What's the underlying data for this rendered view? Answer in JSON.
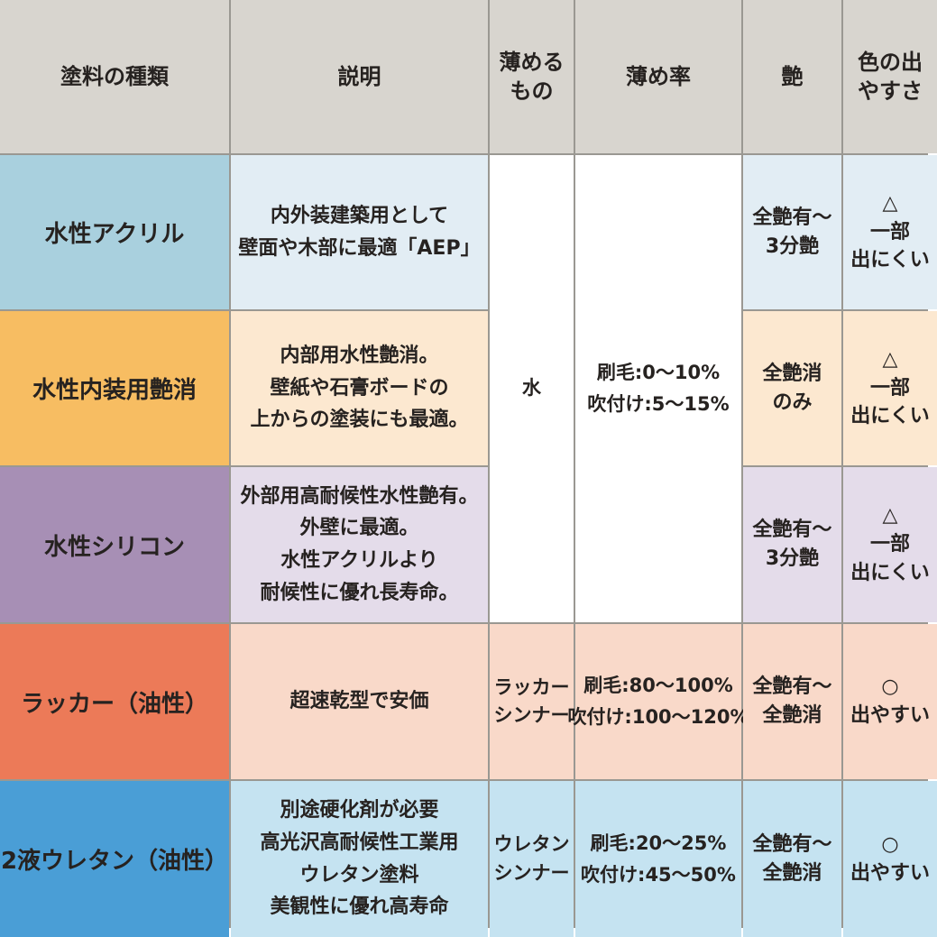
{
  "headers": {
    "bg": "#d8d5cf",
    "type": "塗料の種類",
    "description": "説明",
    "thinner": "薄める\nもの",
    "ratio": "薄め率",
    "gloss": "艶",
    "color_ease": "色の出\nやすさ"
  },
  "grid_line_color": "#9a9892",
  "text_color": "#262220",
  "merged_water": {
    "bg": "#ffffff",
    "thinner": "水",
    "ratio": "刷毛:0～10%\n吹付け:5～15%"
  },
  "rows": [
    {
      "type": "水性アクリル",
      "description": "内外装建築用として\n壁面や木部に最適「AEP」",
      "gloss": "全艶有～\n3分艶",
      "color_ease": "△\n一部\n出にくい",
      "accent": "#a9d0de",
      "tint": "#e2edf4"
    },
    {
      "type": "水性内装用艶消",
      "description": "内部用水性艶消。\n壁紙や石膏ボードの\n上からの塗装にも最適。",
      "gloss": "全艶消\nのみ",
      "color_ease": "△\n一部\n出にくい",
      "accent": "#f7bd62",
      "tint": "#fce8d0"
    },
    {
      "type": "水性シリコン",
      "description": "外部用高耐候性水性艶有。\n外壁に最適。\n水性アクリルより\n耐候性に優れ長寿命。",
      "gloss": "全艶有～\n3分艶",
      "color_ease": "△\n一部\n出にくい",
      "accent": "#a78fb5",
      "tint": "#e4dcea"
    },
    {
      "type": "ラッカー（油性）",
      "description": "超速乾型で安価",
      "thinner": "ラッカー\nシンナー",
      "ratio": "刷毛:80～100%\n吹付け:100～120%",
      "gloss": "全艶有～\n全艶消",
      "color_ease": "○\n出やすい",
      "accent": "#ec7a58",
      "tint": "#f9d9c9"
    },
    {
      "type": "2液ウレタン（油性）",
      "description": "別途硬化剤が必要\n高光沢高耐候性工業用\nウレタン塗料\n美観性に優れ高寿命",
      "thinner": "ウレタン\nシンナー",
      "ratio": "刷毛:20～25%\n吹付け:45～50%",
      "gloss": "全艶有～\n全艶消",
      "color_ease": "○\n出やすい",
      "accent": "#4a9ed6",
      "tint": "#c5e3f1"
    }
  ],
  "chart_data": {
    "type": "table",
    "title": "",
    "columns": [
      "塗料の種類",
      "説明",
      "薄めるもの",
      "薄め率",
      "艶",
      "色の出やすさ"
    ],
    "rows": [
      [
        "水性アクリル",
        "内外装建築用として壁面や木部に最適「AEP」",
        "水",
        "刷毛:0～10% 吹付け:5～15%",
        "全艶有～3分艶",
        "△ 一部出にくい"
      ],
      [
        "水性内装用艶消",
        "内部用水性艶消。壁紙や石膏ボードの上からの塗装にも最適。",
        "水",
        "刷毛:0～10% 吹付け:5～15%",
        "全艶消のみ",
        "△ 一部出にくい"
      ],
      [
        "水性シリコン",
        "外部用高耐候性水性艶有。外壁に最適。水性アクリルより耐候性に優れ長寿命。",
        "水",
        "刷毛:0～10% 吹付け:5～15%",
        "全艶有～3分艶",
        "△ 一部出にくい"
      ],
      [
        "ラッカー（油性）",
        "超速乾型で安価",
        "ラッカーシンナー",
        "刷毛:80～100% 吹付け:100～120%",
        "全艶有～全艶消",
        "○ 出やすい"
      ],
      [
        "2液ウレタン（油性）",
        "別途硬化剤が必要 高光沢高耐候性工業用ウレタン塗料 美観性に優れ高寿命",
        "ウレタンシンナー",
        "刷毛:20～25% 吹付け:45～50%",
        "全艶有～全艶消",
        "○ 出やすい"
      ]
    ]
  }
}
